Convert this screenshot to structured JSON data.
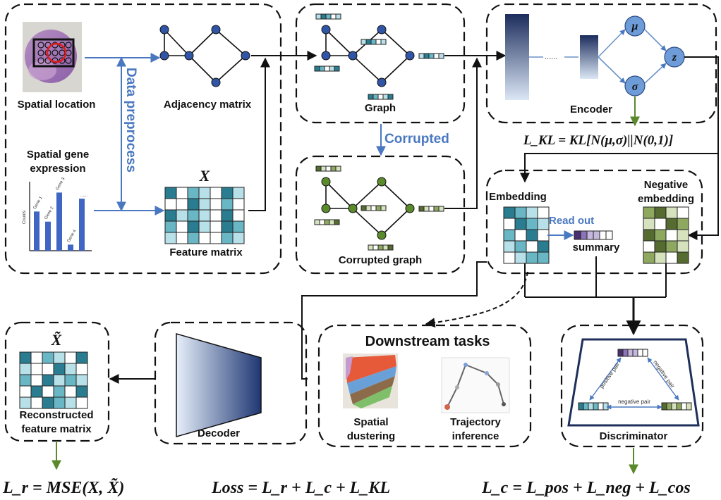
{
  "labels": {
    "spatial_location": "Spatial location",
    "spatial_gene_expression_1": "Spatial gene",
    "spatial_gene_expression_2": "expression",
    "data_preprocess": "Data preprocess",
    "adjacency_matrix": "Adjacency matrix",
    "feature_matrix_symbol": "X",
    "feature_matrix": "Feature matrix",
    "graph": "Graph",
    "corrupted": "Corrupted",
    "corrupted_graph": "Corrupted graph",
    "encoder": "Encoder",
    "encoder_dots": "......",
    "mu": "μ",
    "sigma": "σ",
    "z": "z",
    "embedding": "Embedding",
    "read_out": "Read out",
    "summary": "summary",
    "negative_embedding_1": "Negative",
    "negative_embedding_2": "embedding",
    "reconstructed_symbol": "X̃",
    "reconstructed_1": "Reconstructed",
    "reconstructed_2": "feature matrix",
    "decoder": "Decoder",
    "downstream_tasks": "Downstream tasks",
    "spatial_clustering_1": "Spatial",
    "spatial_clustering_2": "dustering",
    "trajectory_1": "Trajectory",
    "trajectory_2": "inference",
    "discriminator": "Discriminator",
    "positive_pair": "positive pair",
    "negative_pair_right": "negative pair",
    "negative_pair_bottom": "negative pair"
  },
  "bar_chart": {
    "ylabel": "Counts",
    "genes": [
      "Gene 1",
      "Gene 2",
      "Gene 3",
      "Gene 4",
      "......"
    ],
    "values": [
      0.58,
      0.43,
      0.86,
      0.09,
      0.77
    ]
  },
  "formulas": {
    "kl": "L_KL = KL[N(μ,σ)||N(0,1)]",
    "lr": "L_r = MSE(X, X̃)",
    "loss": "Loss = L_r + L_c + L_KL",
    "lc": "L_c = L_pos + L_neg + L_cos"
  },
  "colors": {
    "blue_arrow": "#4a78c0",
    "node_blue": "#2f55a4",
    "node_green": "#5a8a2c",
    "teal_dark": "#2a7d90",
    "teal_mid": "#69b6c5",
    "teal_light": "#b8e0e8",
    "green_dark": "#556b2f",
    "green_mid": "#8fa860",
    "green_light": "#d6e2bd",
    "purple_dark": "#4b2f6e",
    "purple_light": "#c5b8dc"
  }
}
